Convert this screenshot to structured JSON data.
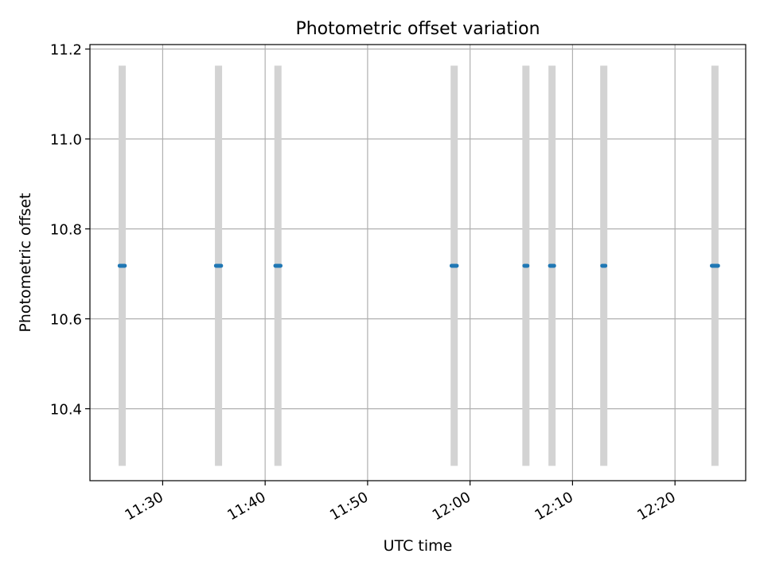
{
  "chart_data": {
    "type": "scatter",
    "title": "Photometric offset variation",
    "xlabel": "UTC time",
    "ylabel": "Photometric offset",
    "grid": true,
    "x_ticks": [
      "11:30",
      "11:40",
      "11:50",
      "12:00",
      "12:10",
      "12:20"
    ],
    "y_ticks": [
      "10.4",
      "10.6",
      "10.8",
      "11.0",
      "11.2"
    ],
    "xlim": [
      "11:22:54",
      "12:26:54"
    ],
    "ylim": [
      10.24,
      11.21
    ],
    "error_bar_range": [
      10.273,
      11.163
    ],
    "error_bar_color": "#d3d3d3",
    "marker_color": "#1f77b4",
    "points": [
      {
        "x": "11:25:48",
        "x_end": "11:26:18",
        "y": 10.718
      },
      {
        "x": "11:35:12",
        "x_end": "11:35:42",
        "y": 10.718
      },
      {
        "x": "11:41:00",
        "x_end": "11:41:30",
        "y": 10.718
      },
      {
        "x": "11:58:12",
        "x_end": "11:58:42",
        "y": 10.718
      },
      {
        "x": "12:05:18",
        "x_end": "12:05:36",
        "y": 10.718
      },
      {
        "x": "12:07:48",
        "x_end": "12:08:12",
        "y": 10.718
      },
      {
        "x": "12:12:54",
        "x_end": "12:13:12",
        "y": 10.718
      },
      {
        "x": "12:23:36",
        "x_end": "12:24:12",
        "y": 10.718
      }
    ]
  }
}
